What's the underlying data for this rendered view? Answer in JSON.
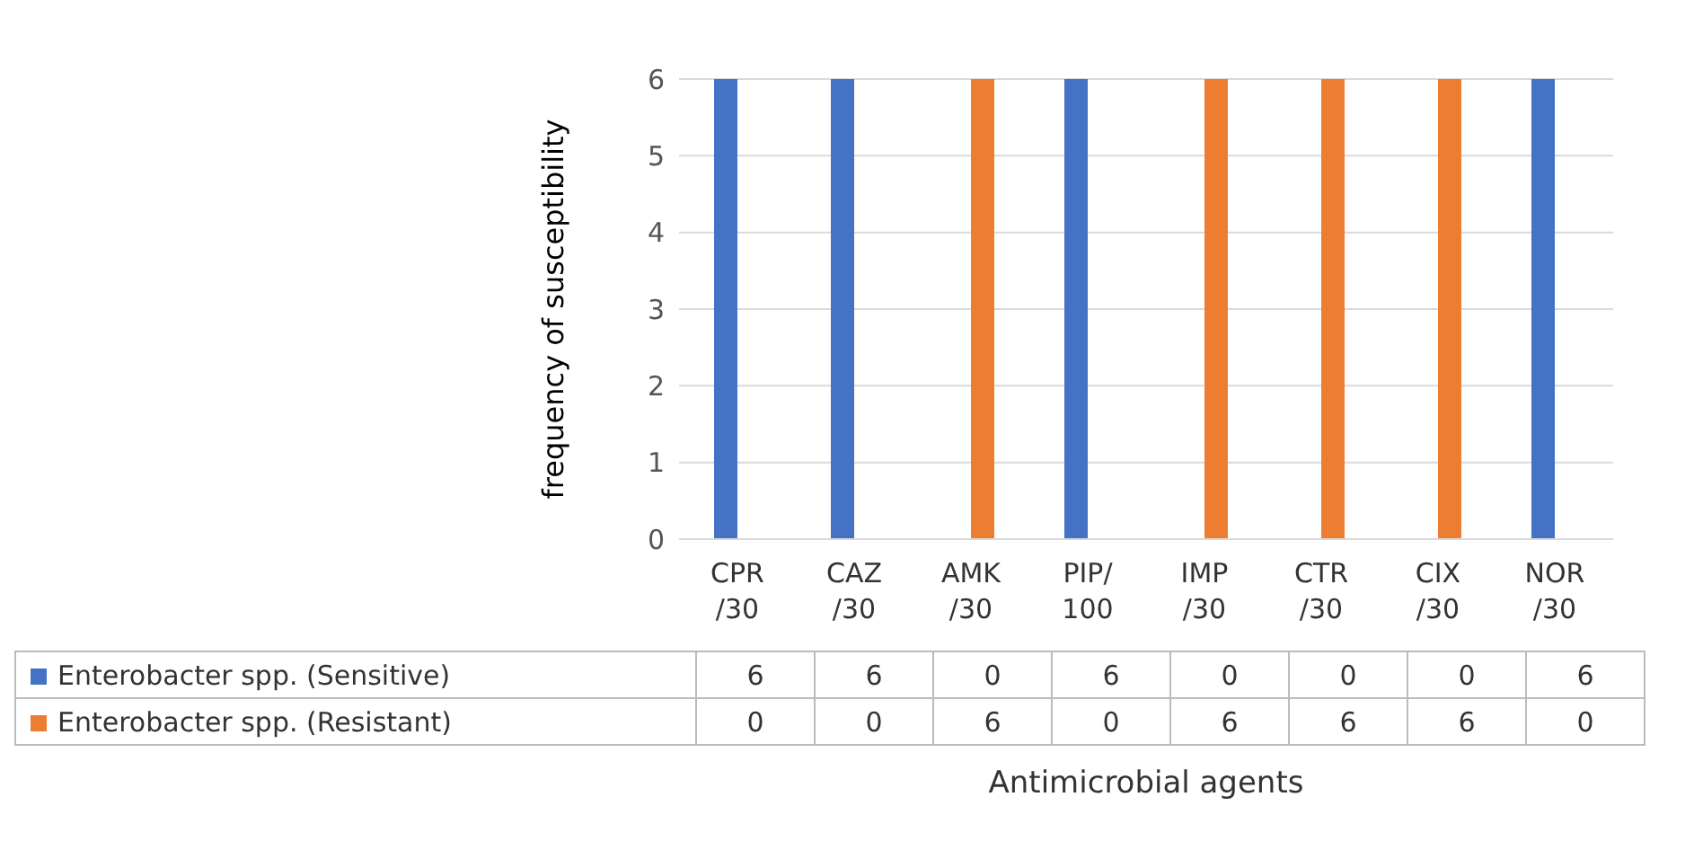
{
  "chart_data": {
    "type": "bar",
    "xlabel": "Antimicrobial agents",
    "ylabel": "frequency of susceptibility",
    "categories": [
      "CPR/30",
      "CAZ/30",
      "AMK/30",
      "PIP/100",
      "IMP/30",
      "CTR/30",
      "CIX/30",
      "NOR/30"
    ],
    "series": [
      {
        "name": "Enterobacter spp. (Sensitive)",
        "color": "#4472c4",
        "values": [
          6,
          6,
          0,
          6,
          0,
          0,
          0,
          6
        ]
      },
      {
        "name": "Enterobacter spp. (Resistant)",
        "color": "#ed7d31",
        "values": [
          0,
          0,
          6,
          0,
          6,
          6,
          6,
          0
        ]
      }
    ],
    "ylim": [
      0,
      6
    ],
    "yticks": [
      0,
      1,
      2,
      3,
      4,
      5,
      6
    ],
    "grid": "y",
    "legend": "bottom",
    "data_labels": true
  }
}
